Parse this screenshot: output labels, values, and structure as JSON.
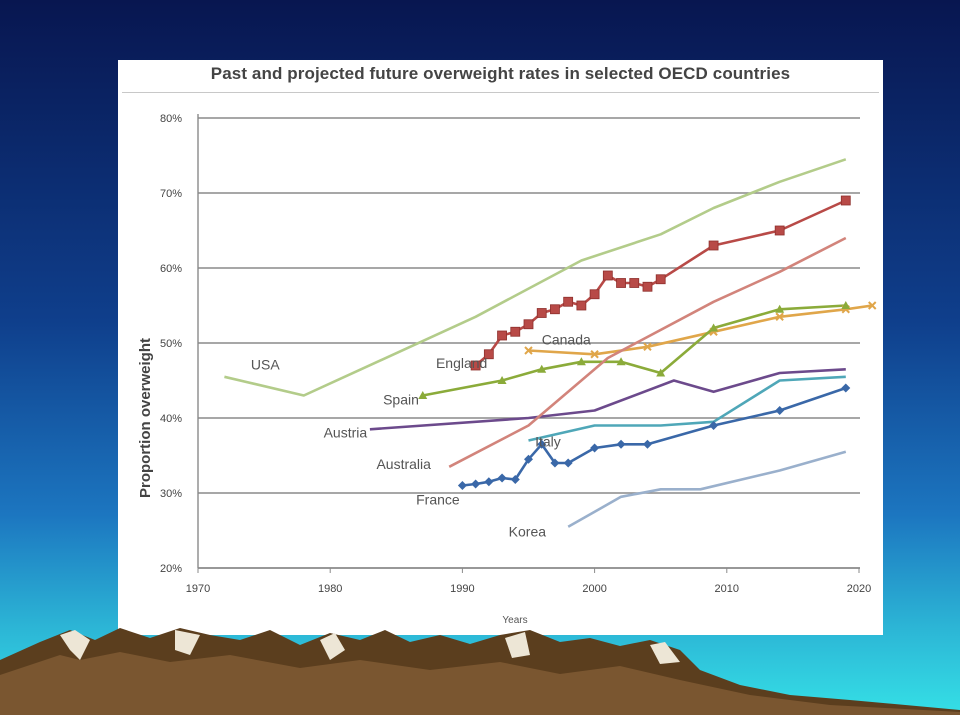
{
  "chart_data": {
    "type": "line",
    "title": "Past and projected future overweight rates in selected OECD countries",
    "xlabel": "Years",
    "ylabel": "Proportion overweight",
    "xlim": [
      1970,
      2022
    ],
    "ylim": [
      20,
      80
    ],
    "xticks": [
      "1970",
      "1980",
      "1990",
      "2000",
      "2010",
      "2020"
    ],
    "yticks": [
      "20%",
      "30%",
      "40%",
      "50%",
      "60%",
      "70%",
      "80%"
    ],
    "grid": "horizontal",
    "legend": "inline labels",
    "series": [
      {
        "name": "USA",
        "color": "#b3cc8a",
        "marker": "none",
        "label_pos": [
          1974,
          46.5
        ],
        "x": [
          1972,
          1978,
          1991,
          1999,
          2005,
          2009,
          2014,
          2019
        ],
        "y": [
          45.5,
          43,
          53.5,
          61,
          64.5,
          68,
          71.5,
          74.5
        ]
      },
      {
        "name": "England",
        "color": "#b84a47",
        "marker": "square",
        "label_pos": [
          1988,
          46.7
        ],
        "x": [
          1991,
          1992,
          1993,
          1994,
          1995,
          1996,
          1997,
          1998,
          1999,
          2000,
          2001,
          2002,
          2003,
          2004,
          2005,
          2009,
          2014,
          2019
        ],
        "y": [
          47,
          48.5,
          51,
          51.5,
          52.5,
          54,
          54.5,
          55.5,
          55,
          56.5,
          59,
          58,
          58,
          57.5,
          58.5,
          63,
          65,
          69
        ]
      },
      {
        "name": "Canada",
        "color": "#e0a64a",
        "marker": "x",
        "label_pos": [
          1996,
          49.8
        ],
        "x": [
          1995,
          2000,
          2004,
          2009,
          2014,
          2019,
          2021
        ],
        "y": [
          49,
          48.5,
          49.5,
          51.5,
          53.5,
          54.5,
          55
        ]
      },
      {
        "name": "Spain",
        "color": "#8bab3a",
        "marker": "triangle",
        "label_pos": [
          1984,
          41.8
        ],
        "x": [
          1987,
          1993,
          1996,
          1999,
          2002,
          2005,
          2009,
          2014,
          2019
        ],
        "y": [
          43,
          45,
          46.5,
          47.5,
          47.5,
          46,
          52,
          54.5,
          55
        ]
      },
      {
        "name": "Austria",
        "color": "#6c4a8c",
        "marker": "none",
        "label_pos": [
          1979.5,
          37.4
        ],
        "x": [
          1983,
          1995,
          2000,
          2006,
          2009,
          2014,
          2019
        ],
        "y": [
          38.5,
          40,
          41,
          45,
          43.5,
          46,
          46.5
        ]
      },
      {
        "name": "Australia",
        "color": "#d2847b",
        "marker": "none",
        "label_pos": [
          1983.5,
          33.2
        ],
        "x": [
          1989,
          1995,
          2001,
          2009,
          2014,
          2019
        ],
        "y": [
          33.5,
          39,
          48,
          55.5,
          59.5,
          64
        ]
      },
      {
        "name": "Italy",
        "color": "#4fa7b8",
        "marker": "none",
        "label_pos": [
          1995.5,
          36.2
        ],
        "x": [
          1995,
          2000,
          2005,
          2009,
          2014,
          2019
        ],
        "y": [
          37,
          39,
          39,
          39.5,
          45,
          45.5
        ]
      },
      {
        "name": "France",
        "color": "#3a68a8",
        "marker": "diamond",
        "label_pos": [
          1986.5,
          28.5
        ],
        "x": [
          1990,
          1991,
          1992,
          1993,
          1994,
          1995,
          1996,
          1997,
          1998,
          2000,
          2002,
          2004,
          2009,
          2014,
          2019
        ],
        "y": [
          31,
          31.2,
          31.5,
          32,
          31.8,
          34.5,
          36.5,
          34,
          34,
          36,
          36.5,
          36.5,
          39,
          41,
          44
        ]
      },
      {
        "name": "Korea",
        "color": "#9ab0cc",
        "marker": "none",
        "label_pos": [
          1993.5,
          24.2
        ],
        "x": [
          1998,
          2002,
          2005,
          2008,
          2014,
          2019
        ],
        "y": [
          25.5,
          29.5,
          30.5,
          30.5,
          33,
          35.5
        ]
      }
    ]
  }
}
